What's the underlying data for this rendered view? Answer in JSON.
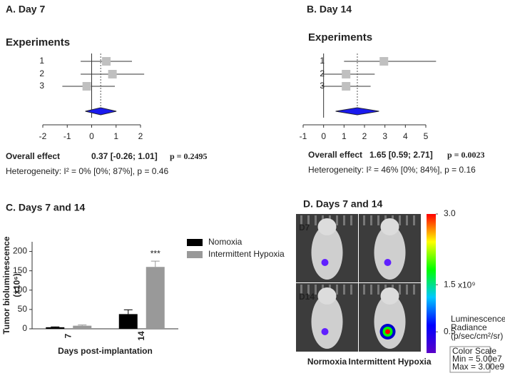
{
  "chart_data": [
    {
      "type": "forest",
      "title": "A. Day 7",
      "subtitle": "Experiments",
      "categories": [
        "1",
        "2",
        "3"
      ],
      "values": [
        0.6,
        0.85,
        -0.2
      ],
      "ci_low": [
        -0.45,
        -0.45,
        -1.2
      ],
      "ci_high": [
        1.65,
        2.15,
        0.95
      ],
      "overall": {
        "estimate": 0.37,
        "low": -0.26,
        "high": 1.01,
        "label": "0.37 [-0.26; 1.01]"
      },
      "overall_title": "Overall effect",
      "p_text": "p = 0.2495",
      "heterogeneity": "Heterogeneity: I² = 0% [0%; 87%], p = 0.46",
      "xlim": [
        -2,
        2
      ],
      "xticks": [
        -2,
        -1,
        0,
        1,
        2
      ],
      "color": "#c0c0c0",
      "diamond_color": "#1a1aee"
    },
    {
      "type": "forest",
      "title": "B. Day 14",
      "subtitle": "Experiments",
      "categories": [
        "1",
        "2",
        "3"
      ],
      "values": [
        2.95,
        1.1,
        1.1
      ],
      "ci_low": [
        1.0,
        -0.1,
        -0.1
      ],
      "ci_high": [
        5.5,
        2.5,
        2.3
      ],
      "overall": {
        "estimate": 1.65,
        "low": 0.59,
        "high": 2.71,
        "label": "1.65 [0.59; 2.71]"
      },
      "overall_title": "Overall effect",
      "p_text": "p = 0.0023",
      "heterogeneity": "Heterogeneity: I² = 46% [0%; 84%], p = 0.16",
      "xlim": [
        -1,
        5
      ],
      "xticks": [
        -1,
        0,
        1,
        2,
        3,
        4,
        5
      ],
      "color": "#c0c0c0",
      "diamond_color": "#1a1aee"
    },
    {
      "type": "bar",
      "title": "C. Days 7 and 14",
      "y_label": "Tumor bioluminescence",
      "y_unit": "(x10⁶)",
      "x_label": "Days post-implantation",
      "categories": [
        "7",
        "14"
      ],
      "series": [
        {
          "name": "Nomoxia",
          "color": "#000000",
          "values": [
            4,
            38
          ],
          "errors": [
            1,
            11
          ]
        },
        {
          "name": "Intermittent Hypoxia",
          "color": "#999999",
          "values": [
            8,
            160
          ],
          "errors": [
            2,
            15
          ]
        }
      ],
      "annotation": "***",
      "ylim": [
        0,
        225
      ],
      "yticks": [
        0,
        50,
        100,
        150,
        200
      ]
    },
    {
      "type": "image",
      "title": "D. Days 7 and 14",
      "row_labels": [
        "D7",
        "D14"
      ],
      "column_labels": [
        "Normoxia",
        "Intermittent Hypoxia"
      ],
      "colorbar": {
        "lim": [
          0.05,
          3
        ],
        "ticks": [
          {
            "value": 3,
            "label": "3.0"
          },
          1.5,
          0.5
        ],
        "unit": "x10⁹"
      },
      "legend_lines": [
        "Luminescence",
        "Radiance",
        "(p/sec/cm²/sr)"
      ],
      "scale_box": [
        "Color Scale",
        "Min = 5.00e7",
        "Max = 3.00e9"
      ]
    }
  ]
}
